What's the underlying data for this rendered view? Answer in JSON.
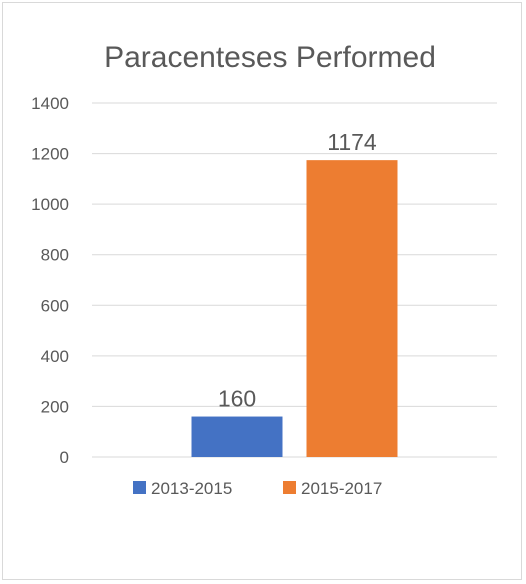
{
  "chart_data": {
    "type": "bar",
    "title": "Paracenteses Performed",
    "categories": [
      ""
    ],
    "series": [
      {
        "name": "2013-2015",
        "values": [
          160
        ],
        "color": "#4472c4",
        "data_label": "160"
      },
      {
        "name": "2015-2017",
        "values": [
          1174
        ],
        "color": "#ed7d31",
        "data_label": "1174"
      }
    ],
    "xlabel": "",
    "ylabel": "",
    "ylim": [
      0,
      1400
    ],
    "yticks": [
      "0",
      "200",
      "400",
      "600",
      "800",
      "1000",
      "1200",
      "1400"
    ],
    "grid": true,
    "legend": "bottom"
  }
}
